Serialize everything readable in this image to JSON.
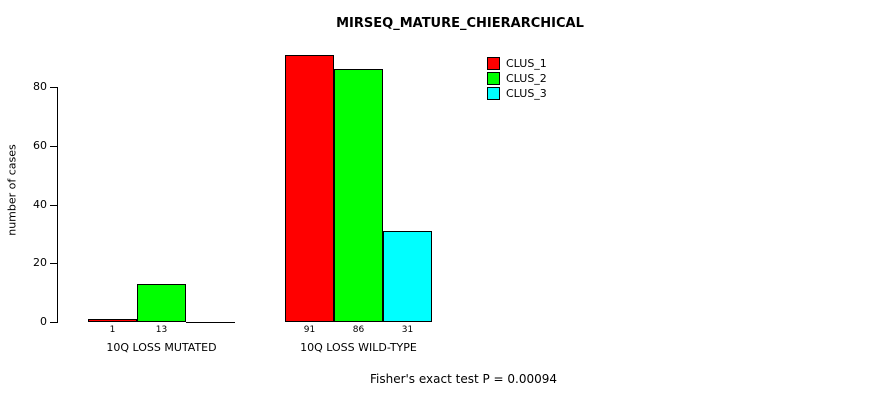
{
  "chart_data": {
    "type": "bar",
    "title": "MIRSEQ_MATURE_CHIERARCHICAL",
    "ylabel": "number of cases",
    "annotation": "Fisher's exact test P = 0.00094",
    "categories": [
      "10Q LOSS MUTATED",
      "10Q LOSS WILD-TYPE"
    ],
    "series": [
      {
        "name": "CLUS_1",
        "color": "#FF0000",
        "values": [
          1,
          91
        ]
      },
      {
        "name": "CLUS_2",
        "color": "#00FF00",
        "values": [
          13,
          86
        ]
      },
      {
        "name": "CLUS_3",
        "color": "#00FFFF",
        "values": [
          0,
          31
        ]
      }
    ],
    "value_labels": [
      [
        "1",
        "13",
        ""
      ],
      [
        "91",
        "86",
        "31"
      ]
    ],
    "y_ticks": [
      0,
      20,
      40,
      60,
      80
    ],
    "ylim": [
      0,
      95
    ],
    "legend_position": "top-right",
    "grid": false
  }
}
